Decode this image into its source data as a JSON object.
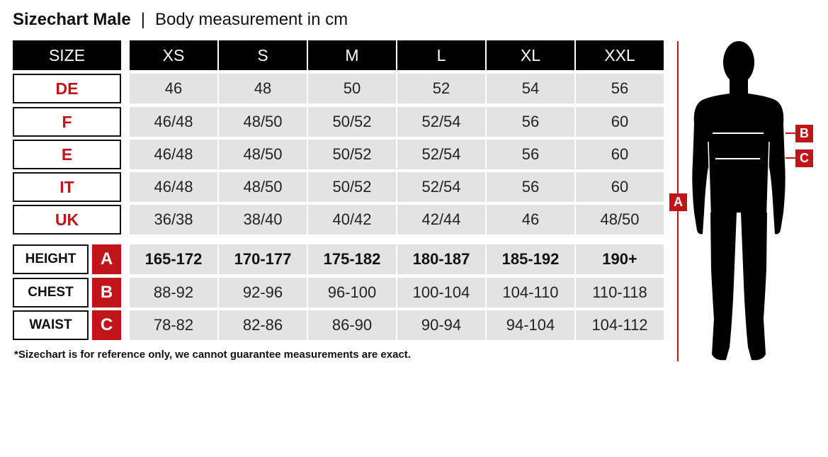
{
  "title": {
    "bold": "Sizechart Male",
    "separator": "|",
    "subtitle": "Body measurement in cm"
  },
  "table": {
    "corner_label": "SIZE",
    "sizes": [
      "XS",
      "S",
      "M",
      "L",
      "XL",
      "XXL"
    ],
    "country_rows": [
      {
        "label": "DE",
        "values": [
          "46",
          "48",
          "50",
          "52",
          "54",
          "56"
        ]
      },
      {
        "label": "F",
        "values": [
          "46/48",
          "48/50",
          "50/52",
          "52/54",
          "56",
          "60"
        ]
      },
      {
        "label": "E",
        "values": [
          "46/48",
          "48/50",
          "50/52",
          "52/54",
          "56",
          "60"
        ]
      },
      {
        "label": "IT",
        "values": [
          "46/48",
          "48/50",
          "50/52",
          "52/54",
          "56",
          "60"
        ]
      },
      {
        "label": "UK",
        "values": [
          "36/38",
          "38/40",
          "40/42",
          "42/44",
          "46",
          "48/50"
        ]
      }
    ],
    "measurement_rows": [
      {
        "label": "HEIGHT",
        "badge": "A",
        "values": [
          "165-172",
          "170-177",
          "175-182",
          "180-187",
          "185-192",
          "190+"
        ]
      },
      {
        "label": "CHEST",
        "badge": "B",
        "values": [
          "88-92",
          "92-96",
          "96-100",
          "100-104",
          "104-110",
          "110-118"
        ]
      },
      {
        "label": "WAIST",
        "badge": "C",
        "values": [
          "78-82",
          "82-86",
          "86-90",
          "90-94",
          "94-104",
          "104-112"
        ]
      }
    ]
  },
  "note": "*Sizechart is for reference only, we cannot guarantee measurements are exact.",
  "figure": {
    "height_marker": "A",
    "chest_marker": "B",
    "waist_marker": "C"
  },
  "colors": {
    "accent_red": "#c0141b",
    "header_black": "#000000",
    "cell_gray": "#e3e3e3"
  }
}
